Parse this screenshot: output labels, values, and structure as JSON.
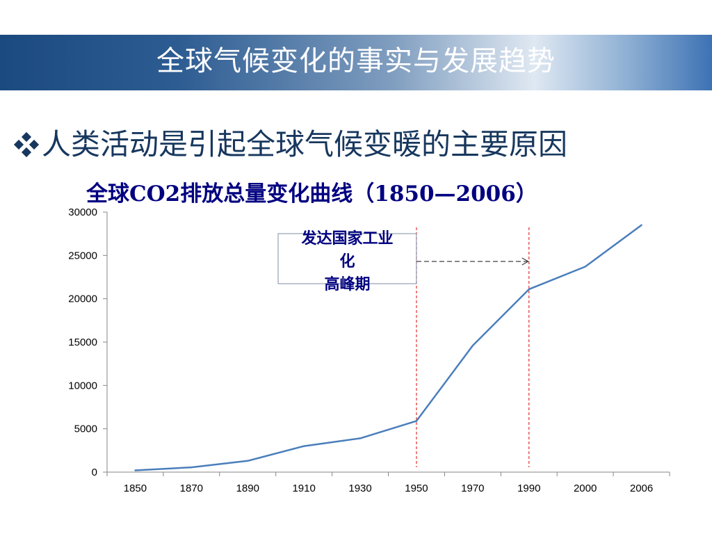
{
  "slide": {
    "title": "全球气候变化的事实与发展趋势",
    "bullet": "人类活动是引起全球气候变暖的主要原因",
    "bullet_icon": "diamond-dots-icon"
  },
  "colors": {
    "banner_dark": "#1b4a80",
    "bullet_text": "#17375e",
    "chart_title": "#000080",
    "line": "#4a7ebb",
    "marker_line": "#e03030"
  },
  "chart_data": {
    "type": "line",
    "title": "全球CO2排放总量变化曲线（1850—2006）",
    "categories": [
      "1850",
      "1870",
      "1890",
      "1910",
      "1930",
      "1950",
      "1970",
      "1990",
      "2000",
      "2006"
    ],
    "series": [
      {
        "values": [
          200,
          550,
          1300,
          3000,
          3900,
          5900,
          14600,
          21100,
          23700,
          28500
        ]
      }
    ],
    "ylim": [
      0,
      30000
    ],
    "yticks": [
      0,
      5000,
      10000,
      15000,
      20000,
      25000,
      30000
    ],
    "grid": false,
    "legend": "none",
    "annotations": [
      {
        "lines": [
          "发达国家工业",
          "化",
          "高峰期"
        ],
        "marker_categories": [
          "1950",
          "1990"
        ]
      }
    ]
  }
}
